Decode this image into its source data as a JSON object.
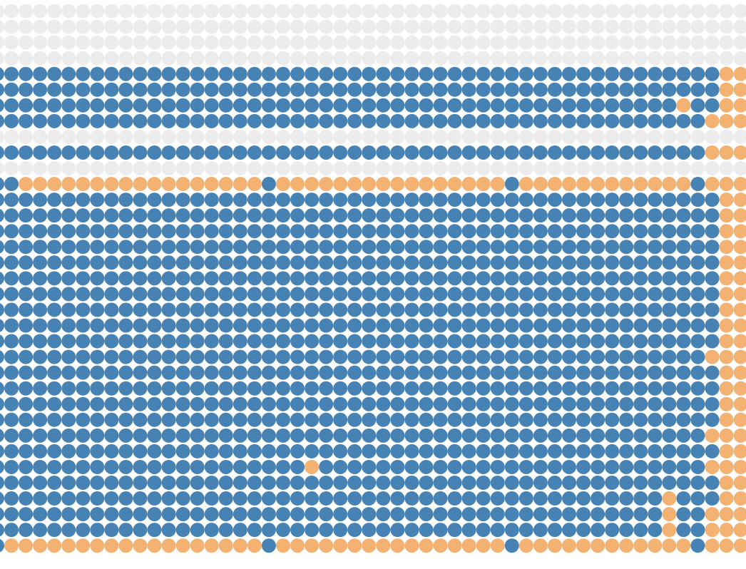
{
  "colors": {
    "blue": "#4682b4",
    "orange": "#f4b272",
    "empty": "#ececec",
    "background": "#ffffff"
  },
  "grid": {
    "columns": 53,
    "rows_top_to_bottom": [
      {
        "kind": "empty"
      },
      {
        "kind": "empty"
      },
      {
        "kind": "empty"
      },
      {
        "kind": "empty"
      },
      {
        "kind": "filled",
        "tail_orange": 2
      },
      {
        "kind": "filled",
        "tail_orange": 2
      },
      {
        "kind": "filled",
        "tail_orange": 2,
        "orange_columns": [
          48
        ]
      },
      {
        "kind": "filled",
        "tail_orange": 3
      },
      {
        "kind": "empty"
      },
      {
        "kind": "filled",
        "tail_orange": 3
      },
      {
        "kind": "empty"
      },
      {
        "kind": "accent",
        "blue_columns": [
          0,
          1,
          19,
          36,
          49
        ]
      },
      {
        "kind": "filled",
        "tail_orange": 2
      },
      {
        "kind": "filled",
        "tail_orange": 2
      },
      {
        "kind": "filled",
        "tail_orange": 2
      },
      {
        "kind": "filled",
        "tail_orange": 2
      },
      {
        "kind": "filled",
        "tail_orange": 2
      },
      {
        "kind": "filled",
        "tail_orange": 2
      },
      {
        "kind": "filled",
        "tail_orange": 2
      },
      {
        "kind": "filled",
        "tail_orange": 2
      },
      {
        "kind": "filled",
        "tail_orange": 2
      },
      {
        "kind": "filled",
        "tail_orange": 2
      },
      {
        "kind": "filled",
        "tail_orange": 3
      },
      {
        "kind": "filled",
        "tail_orange": 2
      },
      {
        "kind": "filled",
        "tail_orange": 2
      },
      {
        "kind": "filled",
        "tail_orange": 2
      },
      {
        "kind": "filled",
        "tail_orange": 2
      },
      {
        "kind": "filled",
        "tail_orange": 3
      },
      {
        "kind": "filled",
        "tail_orange": 2
      },
      {
        "kind": "filled",
        "tail_orange": 3,
        "orange_columns": [
          22
        ]
      },
      {
        "kind": "filled",
        "tail_orange": 2
      },
      {
        "kind": "filled",
        "tail_orange": 2,
        "orange_columns": [
          47
        ]
      },
      {
        "kind": "filled",
        "tail_orange": 3,
        "orange_columns": [
          47
        ]
      },
      {
        "kind": "filled",
        "tail_orange": 3,
        "orange_columns": [
          47
        ]
      },
      {
        "kind": "accent",
        "blue_columns": [
          0,
          19,
          36,
          49
        ]
      }
    ]
  }
}
